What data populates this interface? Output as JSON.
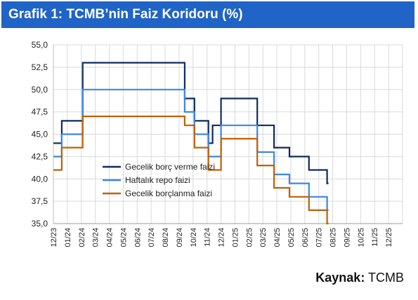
{
  "title": "Grafik 1: TCMB’nin Faiz Koridoru (%)",
  "source": {
    "label": "Kaynak:",
    "value": "TCMB"
  },
  "chart_data": {
    "type": "line",
    "step": true,
    "x_ticks": [
      "12/23",
      "01/24",
      "02/24",
      "03/24",
      "04/24",
      "05/24",
      "06/24",
      "07/24",
      "08/24",
      "09/24",
      "10/24",
      "11/24",
      "12/24",
      "01/25",
      "02/25",
      "03/25",
      "04/25",
      "05/25",
      "06/25",
      "07/25",
      "08/25",
      "09/25",
      "10/25",
      "11/25",
      "12/25"
    ],
    "x_start": "12/23",
    "xlim": [
      0,
      25
    ],
    "ylim": [
      35,
      55
    ],
    "y_ticks": [
      "35,0",
      "37,5",
      "40,0",
      "42,5",
      "45,0",
      "47,5",
      "50,0",
      "52,5",
      "55,0"
    ],
    "grid": true,
    "legend_position": "center-left",
    "series": [
      {
        "name": "Gecelik borç verme faizi",
        "color": "#0d2b5e",
        "points": [
          [
            0,
            44
          ],
          [
            0.6,
            44
          ],
          [
            0.6,
            46.5
          ],
          [
            2.1,
            46.5
          ],
          [
            2.1,
            53
          ],
          [
            9.4,
            53
          ],
          [
            9.4,
            49
          ],
          [
            10.1,
            49
          ],
          [
            10.1,
            46.5
          ],
          [
            11.1,
            46.5
          ],
          [
            11.1,
            44
          ],
          [
            11.4,
            44
          ],
          [
            11.4,
            46
          ],
          [
            12.0,
            46
          ],
          [
            12.0,
            49
          ],
          [
            14.6,
            49
          ],
          [
            14.6,
            46
          ],
          [
            15.8,
            46
          ],
          [
            15.8,
            43.5
          ],
          [
            16.9,
            43.5
          ],
          [
            16.9,
            42.5
          ],
          [
            18.3,
            42.5
          ],
          [
            18.3,
            41
          ],
          [
            19.6,
            41
          ],
          [
            19.6,
            39.5
          ],
          [
            19.7,
            39.5
          ]
        ]
      },
      {
        "name": "Haftalık repo faizi",
        "color": "#3a86e6",
        "points": [
          [
            0,
            42.5
          ],
          [
            0.6,
            42.5
          ],
          [
            0.6,
            45
          ],
          [
            2.1,
            45
          ],
          [
            2.1,
            50
          ],
          [
            9.4,
            50
          ],
          [
            9.4,
            47.5
          ],
          [
            10.1,
            47.5
          ],
          [
            10.1,
            45
          ],
          [
            11.1,
            45
          ],
          [
            11.1,
            42.5
          ],
          [
            12.0,
            42.5
          ],
          [
            12.0,
            46
          ],
          [
            14.6,
            46
          ],
          [
            14.6,
            43
          ],
          [
            15.8,
            43
          ],
          [
            15.8,
            40.5
          ],
          [
            16.9,
            40.5
          ],
          [
            16.9,
            39.5
          ],
          [
            18.3,
            39.5
          ],
          [
            18.3,
            38
          ],
          [
            19.6,
            38
          ],
          [
            19.6,
            36.5
          ],
          [
            19.7,
            36.5
          ]
        ]
      },
      {
        "name": "Gecelik borçlanma faizi",
        "color": "#c06000",
        "points": [
          [
            0,
            41
          ],
          [
            0.6,
            41
          ],
          [
            0.6,
            43.5
          ],
          [
            2.1,
            43.5
          ],
          [
            2.1,
            47
          ],
          [
            9.4,
            47
          ],
          [
            9.4,
            46
          ],
          [
            10.1,
            46
          ],
          [
            10.1,
            43.5
          ],
          [
            11.1,
            43.5
          ],
          [
            11.1,
            41
          ],
          [
            12.0,
            41
          ],
          [
            12.0,
            44.5
          ],
          [
            14.6,
            44.5
          ],
          [
            14.6,
            41.5
          ],
          [
            15.8,
            41.5
          ],
          [
            15.8,
            39
          ],
          [
            16.9,
            39
          ],
          [
            16.9,
            38
          ],
          [
            18.3,
            38
          ],
          [
            18.3,
            36.5
          ],
          [
            19.6,
            36.5
          ],
          [
            19.6,
            35
          ],
          [
            19.7,
            35
          ]
        ]
      }
    ]
  }
}
